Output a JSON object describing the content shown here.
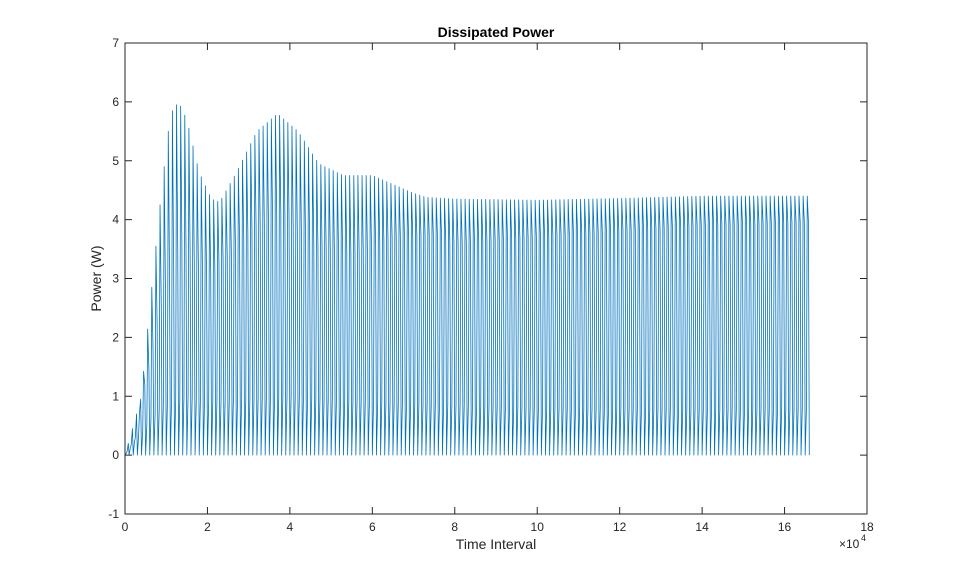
{
  "chart_data": {
    "type": "line",
    "title": "Dissipated Power",
    "xlabel": "Time Interval",
    "ylabel": "Power (W)",
    "x_exponent_label": "×10",
    "x_exponent_power": "4",
    "x_multiplier": 10000,
    "xlim": [
      0,
      18
    ],
    "ylim": [
      -1,
      7
    ],
    "x_ticks": [
      "0",
      "2",
      "4",
      "6",
      "8",
      "10",
      "12",
      "14",
      "16",
      "18"
    ],
    "y_ticks": [
      "-1",
      "0",
      "1",
      "2",
      "3",
      "4",
      "5",
      "6",
      "7"
    ],
    "grid": false,
    "series": [
      {
        "color": "#0072BD",
        "x_end": 16.55,
        "baseline": 0,
        "oscillation_period": 0.1,
        "peak_envelope": {
          "x": [
            0,
            0.3,
            0.6,
            0.9,
            1.1,
            1.3,
            1.5,
            1.8,
            2.1,
            2.3,
            2.7,
            3.2,
            3.7,
            4.2,
            4.7,
            5.3,
            6.0,
            6.5,
            7.0,
            7.3,
            8.0,
            10.0,
            12.0,
            14.0,
            16.55
          ],
          "y": [
            0,
            0.35,
            2.5,
            4.6,
            5.8,
            6.0,
            5.7,
            4.8,
            4.35,
            4.3,
            4.8,
            5.5,
            5.8,
            5.5,
            4.95,
            4.75,
            4.75,
            4.6,
            4.45,
            4.38,
            4.35,
            4.33,
            4.36,
            4.4,
            4.4
          ]
        },
        "mid_envelope": {
          "x": [
            0,
            0.6,
            1.0,
            1.4,
            2.0,
            3.0,
            3.8,
            4.5,
            5.5,
            6.5,
            7.5,
            8.0,
            10.0,
            14.0,
            16.55
          ],
          "y": [
            0,
            1.5,
            3.0,
            3.6,
            3.0,
            3.8,
            4.1,
            3.6,
            3.4,
            3.7,
            3.75,
            3.6,
            3.7,
            3.9,
            3.95
          ]
        },
        "low_envelope": {
          "x": [
            0,
            0.6,
            1.0,
            1.5,
            2.0,
            3.0,
            4.0,
            6.0,
            8.0,
            10.0,
            14.0,
            16.55
          ],
          "y": [
            0,
            0.6,
            0.9,
            1.0,
            0.9,
            0.95,
            1.0,
            0.9,
            0.85,
            0.8,
            0.78,
            0.78
          ]
        }
      }
    ]
  }
}
